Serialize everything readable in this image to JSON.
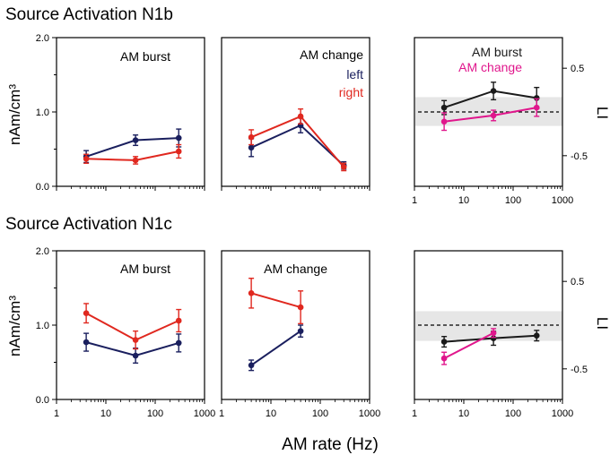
{
  "colors": {
    "left": "#1a1f5e",
    "right": "#e0281f",
    "burst": "#1a1a1a",
    "change": "#e0168c",
    "band": "#e6e6e6",
    "axis": "#000000"
  },
  "row_titles": [
    "Source Activation N1b",
    "Source Activation N1c"
  ],
  "common_xlabel": "AM rate (Hz)",
  "left_ylabel": "nAm/cm³",
  "right_ylabel": "LI",
  "x_ticks": [
    "1",
    "10",
    "100",
    "1000"
  ],
  "act_y_ticks": [
    "0.0",
    "1.0",
    "2.0"
  ],
  "li_y_ticks": [
    "0.5",
    "-0.5"
  ],
  "chart_data": [
    {
      "id": "n1b-burst",
      "type": "line",
      "title": "AM burst",
      "row": "Source Activation N1b",
      "xscale": "log",
      "xlim": [
        1,
        1000
      ],
      "ylim": [
        0,
        2
      ],
      "series": [
        {
          "name": "left",
          "x": [
            4,
            40,
            300
          ],
          "y": [
            0.4,
            0.62,
            0.65
          ],
          "err": [
            0.08,
            0.07,
            0.12
          ]
        },
        {
          "name": "right",
          "x": [
            4,
            40,
            300
          ],
          "y": [
            0.37,
            0.35,
            0.47
          ],
          "err": [
            0.06,
            0.05,
            0.09
          ]
        }
      ]
    },
    {
      "id": "n1b-change",
      "type": "line",
      "title": "AM change",
      "row": "Source Activation N1b",
      "xscale": "log",
      "xlim": [
        1,
        1000
      ],
      "ylim": [
        0,
        2
      ],
      "legend": [
        "left",
        "right"
      ],
      "series": [
        {
          "name": "left",
          "x": [
            4,
            40,
            300
          ],
          "y": [
            0.52,
            0.82,
            0.28
          ],
          "err": [
            0.12,
            0.1,
            0.05
          ]
        },
        {
          "name": "right",
          "x": [
            4,
            40,
            300
          ],
          "y": [
            0.66,
            0.94,
            0.26
          ],
          "err": [
            0.1,
            0.1,
            0.05
          ]
        }
      ]
    },
    {
      "id": "n1b-li",
      "type": "line",
      "title": "",
      "row": "Source Activation N1b",
      "xscale": "log",
      "xlim": [
        1,
        1000
      ],
      "ylim": [
        -0.85,
        0.85
      ],
      "legend": [
        "AM burst",
        "AM change"
      ],
      "band": [
        -0.16,
        0.17
      ],
      "reference_line": 0,
      "series": [
        {
          "name": "AM burst",
          "x": [
            4,
            40,
            300
          ],
          "y": [
            0.05,
            0.24,
            0.16
          ],
          "err": [
            0.08,
            0.1,
            0.12
          ]
        },
        {
          "name": "AM change",
          "x": [
            4,
            40,
            300
          ],
          "y": [
            -0.11,
            -0.04,
            0.05
          ],
          "err": [
            0.1,
            0.06,
            0.1
          ]
        }
      ]
    },
    {
      "id": "n1c-burst",
      "type": "line",
      "title": "AM burst",
      "row": "Source Activation N1c",
      "xscale": "log",
      "xlim": [
        1,
        1000
      ],
      "ylim": [
        0,
        2
      ],
      "series": [
        {
          "name": "left",
          "x": [
            4,
            40,
            300
          ],
          "y": [
            0.77,
            0.59,
            0.76
          ],
          "err": [
            0.12,
            0.1,
            0.12
          ]
        },
        {
          "name": "right",
          "x": [
            4,
            40,
            300
          ],
          "y": [
            1.16,
            0.8,
            1.06
          ],
          "err": [
            0.13,
            0.12,
            0.15
          ]
        }
      ]
    },
    {
      "id": "n1c-change",
      "type": "line",
      "title": "AM change",
      "row": "Source Activation N1c",
      "xscale": "log",
      "xlim": [
        1,
        1000
      ],
      "ylim": [
        0,
        2
      ],
      "series": [
        {
          "name": "left",
          "x": [
            4,
            40
          ],
          "y": [
            0.46,
            0.92
          ],
          "err": [
            0.07,
            0.08
          ]
        },
        {
          "name": "right",
          "x": [
            4,
            40
          ],
          "y": [
            1.43,
            1.24
          ],
          "err": [
            0.2,
            0.22
          ]
        }
      ]
    },
    {
      "id": "n1c-li",
      "type": "line",
      "title": "",
      "row": "Source Activation N1c",
      "xscale": "log",
      "xlim": [
        1,
        1000
      ],
      "ylim": [
        -0.85,
        0.85
      ],
      "band": [
        -0.18,
        0.16
      ],
      "reference_line": 0,
      "series": [
        {
          "name": "AM burst",
          "x": [
            4,
            40,
            300
          ],
          "y": [
            -0.19,
            -0.15,
            -0.12
          ],
          "err": [
            0.06,
            0.08,
            0.06
          ]
        },
        {
          "name": "AM change",
          "x": [
            4,
            40
          ],
          "y": [
            -0.38,
            -0.09
          ],
          "err": [
            0.07,
            0.05
          ]
        }
      ]
    }
  ]
}
